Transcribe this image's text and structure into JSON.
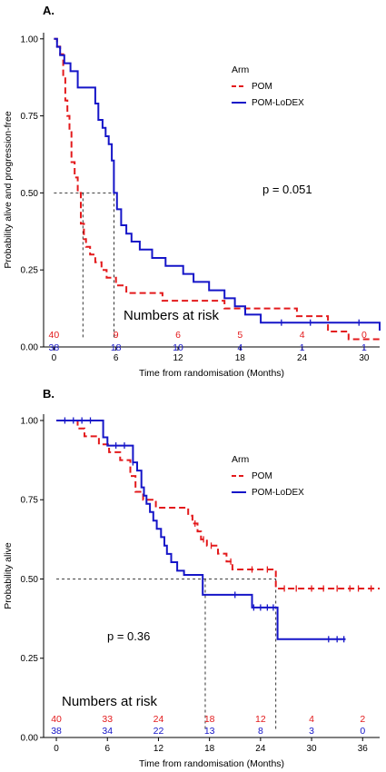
{
  "chart_data": [
    {
      "type": "line",
      "panel_label": "A.",
      "xlabel": "Time from randomisation (Months)",
      "ylabel": "Probability alive and progression-free",
      "xlim": [
        -1,
        31.5
      ],
      "ylim": [
        0,
        1.02
      ],
      "xticks": [
        0,
        6,
        12,
        18,
        24,
        30
      ],
      "yticks": [
        "0.00",
        "0.25",
        "0.50",
        "0.75",
        "1.00"
      ],
      "legend": {
        "title": "Arm",
        "placement": "top-right"
      },
      "p_value": "p = 0.051",
      "risk_title": "Numbers at risk",
      "median_x": [
        2.8,
        5.8
      ],
      "series": [
        {
          "name": "POM",
          "color": "#e31a1c",
          "dash": true,
          "x": [
            0,
            0.3,
            0.6,
            0.9,
            1.1,
            1.3,
            1.5,
            1.7,
            2.0,
            2.3,
            2.6,
            2.9,
            3.1,
            3.5,
            4.0,
            4.6,
            5.1,
            6.0,
            7.0,
            8.5,
            10.5,
            13.5,
            16.5,
            19.5,
            23.5,
            26.5,
            28.5,
            31.5
          ],
          "y": [
            1.0,
            0.975,
            0.95,
            0.875,
            0.8,
            0.75,
            0.7,
            0.6,
            0.55,
            0.5,
            0.4,
            0.35,
            0.325,
            0.3,
            0.275,
            0.25,
            0.225,
            0.2,
            0.175,
            0.175,
            0.15,
            0.15,
            0.125,
            0.125,
            0.1,
            0.05,
            0.025,
            0.025
          ]
        },
        {
          "name": "POM-LoDEX",
          "color": "#1515c8",
          "dash": false,
          "x": [
            0,
            0.3,
            0.6,
            1.0,
            1.6,
            2.3,
            4.0,
            4.3,
            4.7,
            5.0,
            5.3,
            5.6,
            5.8,
            6.1,
            6.5,
            7.0,
            7.5,
            8.3,
            9.5,
            10.8,
            11.7,
            12.5,
            13.5,
            15.0,
            16.5,
            17.5,
            18.5,
            20.0,
            31.5
          ],
          "y": [
            1.0,
            0.974,
            0.947,
            0.921,
            0.895,
            0.842,
            0.79,
            0.737,
            0.711,
            0.684,
            0.658,
            0.605,
            0.5,
            0.447,
            0.395,
            0.368,
            0.342,
            0.316,
            0.289,
            0.263,
            0.263,
            0.237,
            0.211,
            0.184,
            0.158,
            0.132,
            0.105,
            0.079,
            0.053
          ]
        }
      ],
      "censor_marks": [
        {
          "series": "POM-LoDEX",
          "x": [
            22.0,
            24.8,
            29.5
          ]
        }
      ],
      "numbers_at_risk": [
        {
          "series": "POM",
          "values": [
            "40",
            "9",
            "6",
            "5",
            "4",
            "0"
          ]
        },
        {
          "series": "POM-LoDEX",
          "values": [
            "38",
            "18",
            "10",
            "4",
            "1",
            "1"
          ]
        }
      ]
    },
    {
      "type": "line",
      "panel_label": "B.",
      "xlabel": "Time from randomisation (Months)",
      "ylabel": "Probability alive",
      "xlim": [
        -1.5,
        38
      ],
      "ylim": [
        0,
        1.02
      ],
      "xticks": [
        0,
        6,
        12,
        18,
        24,
        30,
        36
      ],
      "yticks": [
        "0.00",
        "0.25",
        "0.50",
        "0.75",
        "1.00"
      ],
      "legend": {
        "title": "Arm",
        "placement": "top-right"
      },
      "p_value": "p = 0.36",
      "risk_title": "Numbers at risk",
      "median_x": [
        17.5,
        25.8
      ],
      "series": [
        {
          "name": "POM",
          "color": "#e31a1c",
          "dash": true,
          "x": [
            0,
            2.5,
            3.3,
            5.0,
            6.2,
            7.5,
            8.7,
            9.3,
            10.2,
            11.7,
            15.5,
            16.0,
            16.6,
            17.0,
            17.7,
            19.0,
            20.0,
            20.7,
            21.7,
            25.8,
            38
          ],
          "y": [
            1.0,
            0.975,
            0.95,
            0.925,
            0.9,
            0.875,
            0.825,
            0.775,
            0.75,
            0.725,
            0.7,
            0.675,
            0.65,
            0.625,
            0.605,
            0.58,
            0.555,
            0.53,
            0.53,
            0.47,
            0.47
          ]
        },
        {
          "name": "POM-LoDEX",
          "color": "#1515c8",
          "dash": false,
          "x": [
            0,
            5.5,
            6.0,
            9.0,
            9.5,
            10.0,
            10.3,
            10.6,
            11.0,
            11.4,
            11.8,
            12.3,
            12.7,
            13.0,
            13.5,
            14.2,
            15.0,
            16.0,
            17.2,
            17.7,
            23.0,
            26.0,
            34.0
          ],
          "y": [
            1.0,
            0.947,
            0.921,
            0.868,
            0.842,
            0.789,
            0.763,
            0.737,
            0.711,
            0.684,
            0.658,
            0.632,
            0.605,
            0.579,
            0.553,
            0.526,
            0.513,
            0.513,
            0.45,
            0.45,
            0.41,
            0.31,
            0.31
          ]
        }
      ],
      "censor_marks": [
        {
          "series": "POM",
          "x": [
            16.3,
            17.3,
            18.2,
            20.5,
            23.0,
            24.8,
            26.8,
            28.2,
            30.0,
            31.4,
            33.0,
            34.5,
            35.5,
            37.0
          ]
        },
        {
          "series": "POM-LoDEX",
          "x": [
            1.0,
            2.0,
            3.0,
            4.0,
            7.0,
            8.0,
            9.0,
            21.0,
            23.2,
            24.0,
            24.8,
            25.5,
            32.0,
            33.0,
            33.8
          ]
        }
      ],
      "numbers_at_risk": [
        {
          "series": "POM",
          "values": [
            "40",
            "33",
            "24",
            "18",
            "12",
            "4",
            "2"
          ]
        },
        {
          "series": "POM-LoDEX",
          "values": [
            "38",
            "34",
            "22",
            "13",
            "8",
            "3",
            "0"
          ]
        }
      ]
    }
  ]
}
